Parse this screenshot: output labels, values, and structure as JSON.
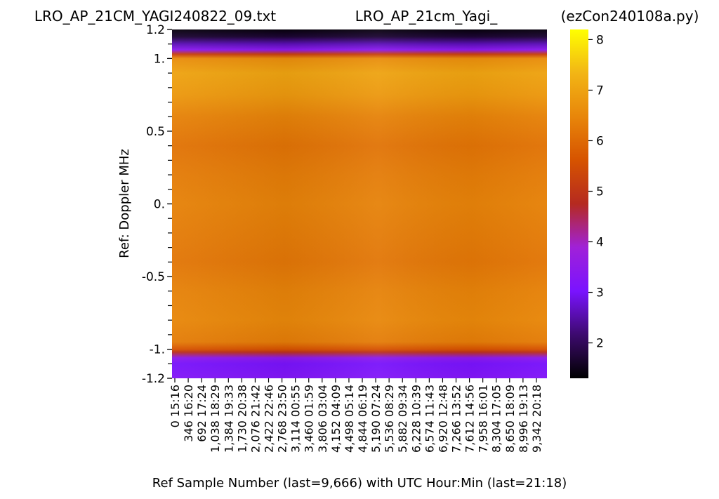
{
  "chart_data": {
    "type": "heatmap",
    "title_left": "LRO_AP_21CM_YAGI240822_09.txt",
    "title_center": "LRO_AP_21cm_Yagi_",
    "title_right": "(ezCon240108a.py)",
    "xlabel": "Ref Sample Number (last=9,666) with UTC Hour:Min (last=21:18)",
    "ylabel": "Ref:  Doppler MHz",
    "ylim": [
      -1.2,
      1.2
    ],
    "y_tick_labels": [
      {
        "value": 1.2,
        "label": "1.2"
      },
      {
        "value": 1.0,
        "label": "1."
      },
      {
        "value": 0.5,
        "label": "0.5"
      },
      {
        "value": 0.0,
        "label": "0."
      },
      {
        "value": -0.5,
        "label": "-0.5"
      },
      {
        "value": -1.0,
        "label": "-1."
      },
      {
        "value": -1.2,
        "label": "-1.2"
      }
    ],
    "y_minor_tick_step": 0.1,
    "x_range": [
      0,
      9666
    ],
    "x_tick_labels": [
      "0   15:16",
      "346   16:20",
      "692   17:24",
      "1,038   18:29",
      "1,384   19:33",
      "1,730   20:38",
      "2,076   21:42",
      "2,422   22:46",
      "2,768   23:50",
      "3,114   00:55",
      "3,460   01:59",
      "3,806   03:04",
      "4,152   04:09",
      "4,498   05:14",
      "4,844   06:19",
      "5,190   07:24",
      "5,536   08:29",
      "5,882   09:34",
      "6,228   10:39",
      "6,574   11:43",
      "6,920   12:48",
      "7,266   13:52",
      "7,612   14:56",
      "7,958   16:01",
      "8,304   17:05",
      "8,650   18:09",
      "8,996   19:13",
      "9,342   20:18"
    ],
    "colormap": "gnuplot",
    "colorbar": {
      "min": 1.3,
      "max": 8.2,
      "ticks": [
        2,
        3,
        4,
        5,
        6,
        7,
        8
      ],
      "stops": [
        "#000000",
        "#3d0a6e",
        "#7a13ff",
        "#a021d8",
        "#b52a20",
        "#d65300",
        "#e8860a",
        "#f2b515",
        "#ffff00"
      ]
    },
    "doppler_profile": [
      {
        "mhz": 1.2,
        "value": 1.4
      },
      {
        "mhz": 1.15,
        "value": 1.7
      },
      {
        "mhz": 1.1,
        "value": 2.6
      },
      {
        "mhz": 1.06,
        "value": 3.4
      },
      {
        "mhz": 1.03,
        "value": 5.2
      },
      {
        "mhz": 1.0,
        "value": 6.6
      },
      {
        "mhz": 0.9,
        "value": 7.0
      },
      {
        "mhz": 0.75,
        "value": 6.8
      },
      {
        "mhz": 0.6,
        "value": 6.4
      },
      {
        "mhz": 0.4,
        "value": 6.15
      },
      {
        "mhz": 0.2,
        "value": 6.3
      },
      {
        "mhz": 0.0,
        "value": 6.4
      },
      {
        "mhz": -0.2,
        "value": 6.3
      },
      {
        "mhz": -0.4,
        "value": 6.2
      },
      {
        "mhz": -0.6,
        "value": 6.4
      },
      {
        "mhz": -0.8,
        "value": 6.5
      },
      {
        "mhz": -0.95,
        "value": 6.3
      },
      {
        "mhz": -1.0,
        "value": 5.6
      },
      {
        "mhz": -1.02,
        "value": 4.9
      },
      {
        "mhz": -1.06,
        "value": 3.4
      },
      {
        "mhz": -1.1,
        "value": 3.0
      },
      {
        "mhz": -1.2,
        "value": 3.2
      }
    ],
    "grid": false,
    "legend": "colorbar-right"
  }
}
